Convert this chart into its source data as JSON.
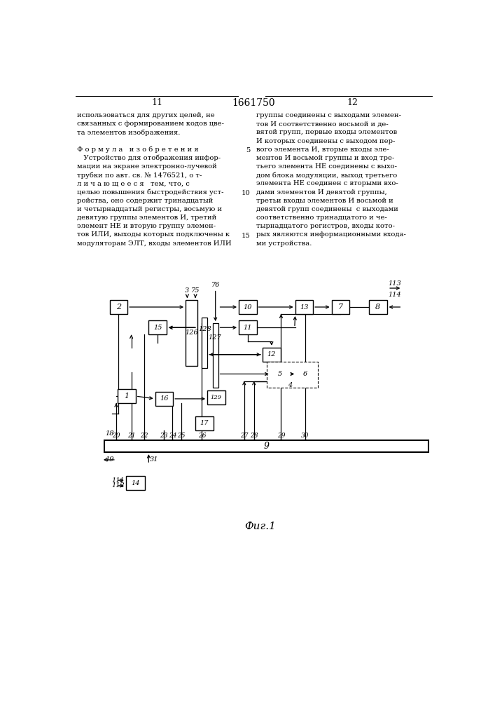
{
  "bg_color": "#ffffff",
  "page_left": "11",
  "page_right": "12",
  "patent_num": "1661750",
  "fig_caption": "Фиг.1",
  "left_col": [
    "использоваться для других целей, не",
    "связанных с формированием кодов цве-",
    "та элементов изображения.",
    "",
    "Ф о р м у л а   и з о б р е т е н и я",
    "   Устройство для отображения инфор-",
    "мации на экране электронно-лучевой",
    "трубки по авт. св. № 1476521, о т-",
    "л и ч а ю щ е е с я   тем, что, с",
    "целью повышения быстродействия уст-",
    "ройства, оно содержит тринадцатый",
    "и четырнадцатый регистры, восьмую и",
    "девятую группы элементов И, третий",
    "элемент НЕ и вторую группу элемен-",
    "тов ИЛИ, выходы которых подключены к",
    "модуляторам ЭЛТ, входы элементов ИЛИ"
  ],
  "right_col": [
    "группы соединены с выходами элемен-",
    "тов И соответственно восьмой и де-",
    "вятой групп, первые входы элементов",
    "И которых соединены с выходом пер-",
    "вого элемента И, вторые входы эле-",
    "ментов И восьмой группы и вход тре-",
    "тьего элемента НЕ соединены с выхо-",
    "дом блока модуляции, выход третьего",
    "элемента НЕ соединен с вторыми вхо-",
    "дами элементов И девятой группы,",
    "третьи входы элементов И восьмой и",
    "девятой групп соединены  с выходами",
    "соответственно тринадцатого и че-",
    "тырнадцатого регистров, входы кото-",
    "рых являются информационными входа-",
    "ми устройства."
  ]
}
